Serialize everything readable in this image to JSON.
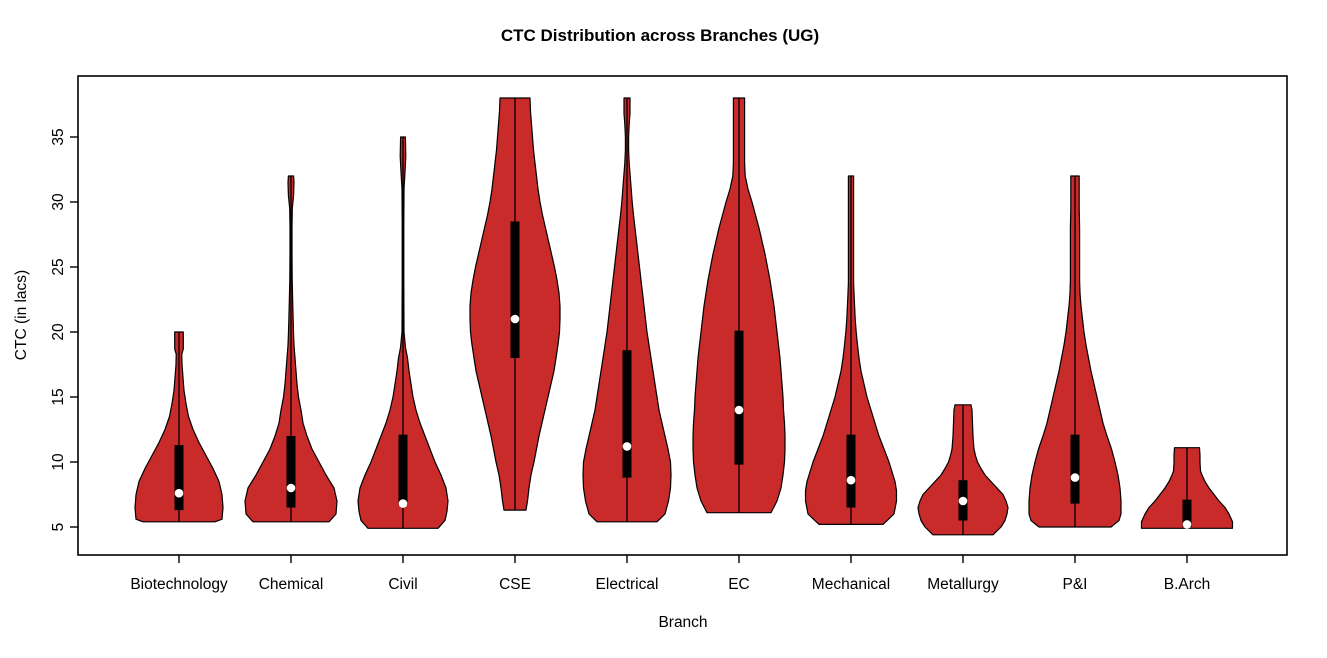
{
  "title": "CTC Distribution across Branches (UG)",
  "x_axis": {
    "label": "Branch"
  },
  "y_axis": {
    "label": "CTC (in lacs)"
  },
  "colors": {
    "violin_fill": "#C92A2A",
    "violin_outline": "#000000",
    "box": "#000000",
    "median_dot": "#FFFFFF",
    "axis": "#000000",
    "background": "#FFFFFF"
  },
  "chart_data": {
    "type": "violin",
    "title": "CTC Distribution across Branches (UG)",
    "xlabel": "Branch",
    "ylabel": "CTC (in lacs)",
    "ylim": [
      2.8,
      39.7
    ],
    "yticks": [
      5,
      10,
      15,
      20,
      25,
      30,
      35
    ],
    "grid": false,
    "categories": [
      "Biotechnology",
      "Chemical",
      "Civil",
      "CSE",
      "Electrical",
      "EC",
      "Mechanical",
      "Metallurgy",
      "P&I",
      "B.Arch"
    ],
    "series": [
      {
        "name": "Biotechnology",
        "min": 5.4,
        "max": 20,
        "q1": 6.3,
        "q3": 11.3,
        "median": 7.6,
        "width_profile": [
          [
            5.4,
            36
          ],
          [
            5.6,
            43
          ],
          [
            6.5,
            44
          ],
          [
            7.5,
            43
          ],
          [
            8.5,
            40
          ],
          [
            9.5,
            34
          ],
          [
            10.5,
            27
          ],
          [
            11.5,
            20
          ],
          [
            12.5,
            14
          ],
          [
            13.5,
            9.5
          ],
          [
            14.5,
            7
          ],
          [
            15.5,
            5
          ],
          [
            16.5,
            4
          ],
          [
            17.5,
            3
          ],
          [
            18.3,
            2.8
          ],
          [
            18.7,
            4.3
          ],
          [
            20,
            4.3
          ]
        ]
      },
      {
        "name": "Chemical",
        "min": 5.4,
        "max": 32,
        "q1": 6.5,
        "q3": 12,
        "median": 8,
        "width_profile": [
          [
            5.4,
            38
          ],
          [
            6,
            45
          ],
          [
            7,
            46
          ],
          [
            8,
            43
          ],
          [
            9,
            35
          ],
          [
            10,
            28
          ],
          [
            11,
            21
          ],
          [
            12,
            16
          ],
          [
            13,
            12
          ],
          [
            14,
            10
          ],
          [
            15,
            7.5
          ],
          [
            16,
            6
          ],
          [
            17,
            5
          ],
          [
            18,
            4
          ],
          [
            19,
            3
          ],
          [
            20,
            2.5
          ],
          [
            22,
            1.8
          ],
          [
            24,
            1.2
          ],
          [
            26,
            1
          ],
          [
            28,
            1
          ],
          [
            29.5,
            1.3
          ],
          [
            30.5,
            2.6
          ],
          [
            31.5,
            3
          ],
          [
            32,
            2.6
          ]
        ]
      },
      {
        "name": "Civil",
        "min": 4.9,
        "max": 35,
        "q1": 6.7,
        "q3": 12.1,
        "median": 6.8,
        "width_profile": [
          [
            4.9,
            35
          ],
          [
            5.5,
            42
          ],
          [
            6.2,
            44
          ],
          [
            7,
            45
          ],
          [
            8,
            43
          ],
          [
            9,
            38
          ],
          [
            10,
            32
          ],
          [
            11,
            27
          ],
          [
            12,
            22
          ],
          [
            13,
            17
          ],
          [
            14,
            13
          ],
          [
            15,
            10
          ],
          [
            16,
            8
          ],
          [
            17,
            6
          ],
          [
            18,
            4.5
          ],
          [
            18.8,
            2.5
          ],
          [
            20,
            1
          ],
          [
            24,
            0.8
          ],
          [
            28,
            0.8
          ],
          [
            31,
            1
          ],
          [
            32.3,
            2
          ],
          [
            33.5,
            2.8
          ],
          [
            35,
            2.4
          ]
        ]
      },
      {
        "name": "CSE",
        "min": 6.3,
        "max": 38,
        "q1": 18,
        "q3": 28.5,
        "median": 21,
        "width_profile": [
          [
            6.3,
            11
          ],
          [
            7,
            12.5
          ],
          [
            8,
            14
          ],
          [
            9,
            16
          ],
          [
            10,
            19
          ],
          [
            11,
            21.5
          ],
          [
            12,
            24
          ],
          [
            13,
            27
          ],
          [
            14,
            30
          ],
          [
            15,
            33
          ],
          [
            16,
            36
          ],
          [
            17,
            39
          ],
          [
            18,
            41
          ],
          [
            19,
            43
          ],
          [
            20,
            44.5
          ],
          [
            21,
            45
          ],
          [
            22,
            45
          ],
          [
            23,
            44
          ],
          [
            24,
            42
          ],
          [
            25,
            39.5
          ],
          [
            26,
            36.5
          ],
          [
            27,
            33.5
          ],
          [
            28,
            30.5
          ],
          [
            29,
            27.5
          ],
          [
            30,
            25
          ],
          [
            31,
            23
          ],
          [
            32,
            21.5
          ],
          [
            33,
            20
          ],
          [
            34,
            18.5
          ],
          [
            35,
            17.5
          ],
          [
            36,
            16.5
          ],
          [
            37,
            15.5
          ],
          [
            38,
            15
          ]
        ]
      },
      {
        "name": "Electrical",
        "min": 5.4,
        "max": 38,
        "q1": 8.8,
        "q3": 18.6,
        "median": 11.2,
        "width_profile": [
          [
            5.4,
            30
          ],
          [
            6,
            38
          ],
          [
            7,
            41.5
          ],
          [
            8,
            43.5
          ],
          [
            9,
            44
          ],
          [
            10,
            43.5
          ],
          [
            11,
            41
          ],
          [
            12,
            38
          ],
          [
            13,
            35
          ],
          [
            14,
            32
          ],
          [
            15,
            30
          ],
          [
            16,
            28
          ],
          [
            17,
            26
          ],
          [
            18,
            24
          ],
          [
            19,
            22
          ],
          [
            20,
            20
          ],
          [
            21,
            18.5
          ],
          [
            22,
            17
          ],
          [
            23,
            15.5
          ],
          [
            24,
            14
          ],
          [
            25,
            12.5
          ],
          [
            26,
            11
          ],
          [
            27,
            9.5
          ],
          [
            28,
            8
          ],
          [
            29,
            6.5
          ],
          [
            30,
            5.2
          ],
          [
            31,
            4.2
          ],
          [
            32,
            3.2
          ],
          [
            33,
            2.2
          ],
          [
            34,
            1.6
          ],
          [
            35,
            1.6
          ],
          [
            36,
            2.2
          ],
          [
            36.8,
            3
          ],
          [
            38,
            3
          ]
        ]
      },
      {
        "name": "EC",
        "min": 6.1,
        "max": 38,
        "q1": 9.8,
        "q3": 20.1,
        "median": 14,
        "width_profile": [
          [
            6.1,
            32
          ],
          [
            7,
            38
          ],
          [
            8,
            42
          ],
          [
            9,
            44
          ],
          [
            10,
            45.5
          ],
          [
            11,
            46
          ],
          [
            12,
            46
          ],
          [
            13,
            45.5
          ],
          [
            14,
            44.5
          ],
          [
            15,
            44
          ],
          [
            16,
            43
          ],
          [
            17,
            42
          ],
          [
            18,
            41
          ],
          [
            19,
            39.5
          ],
          [
            20,
            38
          ],
          [
            21,
            36.5
          ],
          [
            22,
            35
          ],
          [
            23,
            33
          ],
          [
            24,
            31
          ],
          [
            25,
            28.5
          ],
          [
            26,
            26
          ],
          [
            27,
            23
          ],
          [
            28,
            20
          ],
          [
            29,
            16.5
          ],
          [
            30,
            13
          ],
          [
            31,
            9
          ],
          [
            32,
            6.2
          ],
          [
            33,
            5.6
          ],
          [
            35,
            5.6
          ],
          [
            38,
            5.6
          ]
        ]
      },
      {
        "name": "Mechanical",
        "min": 5.2,
        "max": 32,
        "q1": 6.5,
        "q3": 12.1,
        "median": 8.6,
        "width_profile": [
          [
            5.2,
            32
          ],
          [
            6,
            43
          ],
          [
            7,
            45.5
          ],
          [
            7.8,
            45.5
          ],
          [
            8.5,
            44
          ],
          [
            9,
            42
          ],
          [
            10,
            38
          ],
          [
            11,
            33
          ],
          [
            12,
            28
          ],
          [
            13,
            24
          ],
          [
            14,
            20
          ],
          [
            15,
            16
          ],
          [
            16,
            13
          ],
          [
            17,
            10
          ],
          [
            18,
            8
          ],
          [
            19,
            6.5
          ],
          [
            20,
            5.2
          ],
          [
            21,
            4.2
          ],
          [
            22,
            3.6
          ],
          [
            23,
            3
          ],
          [
            23.8,
            2.6
          ],
          [
            27,
            2.6
          ],
          [
            30,
            2.6
          ],
          [
            32,
            2.6
          ]
        ]
      },
      {
        "name": "Metallurgy",
        "min": 4.4,
        "max": 14.4,
        "q1": 5.5,
        "q3": 8.6,
        "median": 7,
        "width_profile": [
          [
            4.4,
            30
          ],
          [
            5,
            38
          ],
          [
            5.5,
            42
          ],
          [
            6,
            44
          ],
          [
            6.5,
            45
          ],
          [
            7,
            43
          ],
          [
            7.5,
            40
          ],
          [
            8,
            34
          ],
          [
            8.5,
            28
          ],
          [
            9,
            22
          ],
          [
            9.5,
            18
          ],
          [
            10,
            14.5
          ],
          [
            10.5,
            12.5
          ],
          [
            11,
            11
          ],
          [
            12,
            10
          ],
          [
            13,
            9.5
          ],
          [
            14,
            9
          ],
          [
            14.4,
            8
          ]
        ]
      },
      {
        "name": "P&I",
        "min": 5,
        "max": 32,
        "q1": 6.8,
        "q3": 12.1,
        "median": 8.8,
        "width_profile": [
          [
            5,
            36
          ],
          [
            5.5,
            44
          ],
          [
            6,
            46
          ],
          [
            7,
            46
          ],
          [
            8,
            45
          ],
          [
            9,
            43
          ],
          [
            10,
            40
          ],
          [
            11,
            36.5
          ],
          [
            12,
            32
          ],
          [
            13,
            28
          ],
          [
            14,
            25
          ],
          [
            15,
            22
          ],
          [
            16,
            19
          ],
          [
            17,
            16
          ],
          [
            18,
            13.5
          ],
          [
            19,
            11
          ],
          [
            20,
            9
          ],
          [
            21,
            7.5
          ],
          [
            22,
            6
          ],
          [
            23,
            5
          ],
          [
            24,
            4.6
          ],
          [
            26,
            4.6
          ],
          [
            28,
            4.6
          ],
          [
            29.5,
            4.2
          ],
          [
            31,
            4.2
          ],
          [
            32,
            4.2
          ]
        ]
      },
      {
        "name": "B.Arch",
        "min": 4.9,
        "max": 11.1,
        "q1": 5,
        "q3": 7.1,
        "median": 5.2,
        "width_profile": [
          [
            4.9,
            45.5
          ],
          [
            5.4,
            45.5
          ],
          [
            6,
            42
          ],
          [
            6.5,
            38
          ],
          [
            7,
            32
          ],
          [
            7.5,
            27
          ],
          [
            8,
            22
          ],
          [
            8.5,
            18
          ],
          [
            9,
            15
          ],
          [
            9.3,
            13.5
          ],
          [
            10,
            13
          ],
          [
            10.5,
            13
          ],
          [
            11.1,
            12.5
          ]
        ]
      }
    ]
  }
}
